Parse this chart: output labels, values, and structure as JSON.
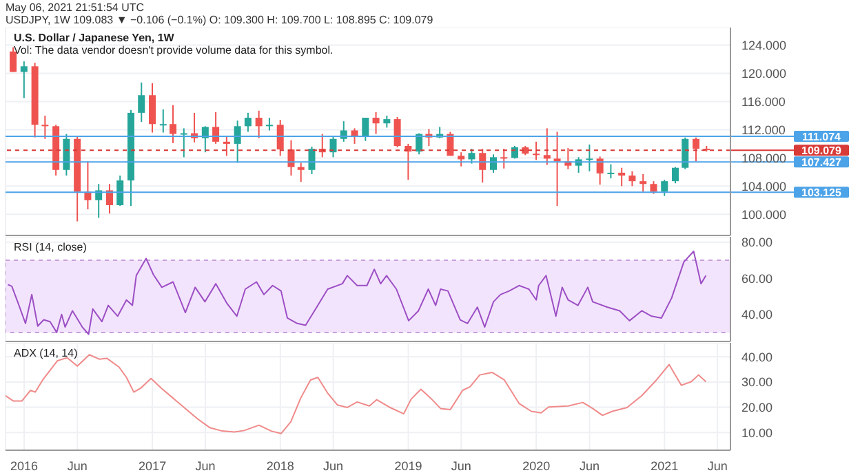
{
  "chart_data": [
    {
      "type": "candlestick",
      "title": "U.S. Dollar / Japanese Yen, 1W",
      "subtitle": "Vol: The data vendor doesn't provide volume data for this symbol.",
      "annotations": [
        "May 06, 2021 21:51:54 UTC",
        "USDJPY, 1W  109.083 ▼ −0.106 (−0.1%)  O: 109.300  H: 109.700  L: 108.895  C: 109.079"
      ],
      "x": [
        "2015-12",
        "2016-01",
        "2016-02",
        "2016-03",
        "2016-04",
        "2016-05",
        "2016-06",
        "2016-07",
        "2016-08",
        "2016-09",
        "2016-10",
        "2016-11",
        "2016-12",
        "2017-01",
        "2017-02",
        "2017-03",
        "2017-04",
        "2017-05",
        "2017-06",
        "2017-07",
        "2017-08",
        "2017-09",
        "2017-10",
        "2017-11",
        "2017-12",
        "2018-01",
        "2018-02",
        "2018-03",
        "2018-04",
        "2018-05",
        "2018-06",
        "2018-07",
        "2018-08",
        "2018-09",
        "2018-10",
        "2018-11",
        "2018-12",
        "2019-01",
        "2019-02",
        "2019-03",
        "2019-04",
        "2019-05",
        "2019-06",
        "2019-07",
        "2019-08",
        "2019-09",
        "2019-10",
        "2019-11",
        "2019-12",
        "2020-01",
        "2020-02",
        "2020-03",
        "2020-04",
        "2020-05",
        "2020-06",
        "2020-07",
        "2020-08",
        "2020-09",
        "2020-10",
        "2020-11",
        "2020-12",
        "2021-01",
        "2021-02",
        "2021-03",
        "2021-04",
        "2021-05"
      ],
      "ohlc": [
        [
          123.1,
          123.7,
          120.2,
          120.2
        ],
        [
          120.2,
          121.7,
          116.5,
          121.0
        ],
        [
          121.0,
          121.5,
          110.9,
          112.7
        ],
        [
          112.7,
          114.0,
          110.7,
          112.5
        ],
        [
          112.5,
          112.7,
          105.5,
          106.3
        ],
        [
          106.3,
          111.4,
          105.5,
          110.7
        ],
        [
          110.7,
          111.0,
          99.0,
          103.2
        ],
        [
          103.2,
          107.5,
          100.7,
          102.0
        ],
        [
          102.0,
          104.3,
          99.5,
          103.4
        ],
        [
          103.4,
          104.3,
          100.1,
          101.3
        ],
        [
          101.3,
          105.5,
          101.2,
          104.8
        ],
        [
          104.8,
          114.8,
          101.2,
          114.4
        ],
        [
          114.4,
          118.7,
          113.1,
          116.9
        ],
        [
          116.9,
          118.6,
          111.6,
          112.8
        ],
        [
          112.8,
          114.9,
          111.6,
          112.8
        ],
        [
          112.8,
          115.5,
          110.1,
          111.4
        ],
        [
          111.4,
          112.2,
          108.1,
          111.5
        ],
        [
          111.5,
          114.4,
          110.2,
          110.8
        ],
        [
          110.8,
          112.5,
          108.8,
          112.4
        ],
        [
          112.4,
          114.5,
          110.0,
          110.3
        ],
        [
          110.3,
          111.1,
          108.3,
          110.0
        ],
        [
          110.0,
          113.3,
          107.3,
          112.5
        ],
        [
          112.5,
          114.4,
          111.7,
          113.7
        ],
        [
          113.7,
          114.7,
          110.8,
          112.5
        ],
        [
          112.5,
          113.7,
          111.9,
          112.7
        ],
        [
          112.7,
          113.4,
          108.3,
          109.2
        ],
        [
          109.2,
          110.5,
          105.5,
          106.7
        ],
        [
          106.7,
          107.3,
          104.6,
          106.3
        ],
        [
          106.3,
          109.6,
          105.7,
          109.3
        ],
        [
          109.3,
          111.4,
          108.1,
          108.8
        ],
        [
          108.8,
          111.0,
          108.1,
          110.7
        ],
        [
          110.7,
          113.2,
          110.3,
          111.9
        ],
        [
          111.9,
          112.2,
          110.0,
          111.0
        ],
        [
          111.0,
          113.7,
          110.4,
          113.7
        ],
        [
          113.7,
          114.5,
          111.4,
          112.9
        ],
        [
          112.9,
          114.0,
          112.3,
          113.5
        ],
        [
          113.5,
          113.8,
          109.5,
          109.7
        ],
        [
          109.7,
          110.0,
          104.9,
          108.9
        ],
        [
          108.9,
          111.5,
          108.5,
          111.4
        ],
        [
          111.4,
          112.1,
          109.7,
          110.9
        ],
        [
          110.9,
          112.4,
          110.8,
          111.4
        ],
        [
          111.4,
          111.7,
          108.3,
          108.3
        ],
        [
          108.3,
          108.8,
          106.8,
          107.8
        ],
        [
          107.8,
          109.3,
          107.2,
          108.7
        ],
        [
          108.7,
          109.3,
          104.5,
          106.3
        ],
        [
          106.3,
          108.5,
          105.9,
          108.1
        ],
        [
          108.1,
          109.3,
          106.5,
          108.0
        ],
        [
          108.0,
          109.7,
          107.9,
          109.5
        ],
        [
          109.5,
          109.7,
          108.4,
          108.6
        ],
        [
          108.6,
          110.3,
          107.7,
          108.4
        ],
        [
          108.4,
          112.2,
          107.0,
          107.9
        ],
        [
          107.9,
          111.7,
          101.2,
          107.5
        ],
        [
          107.5,
          109.4,
          106.4,
          106.9
        ],
        [
          106.9,
          108.1,
          105.9,
          107.8
        ],
        [
          107.8,
          109.9,
          106.1,
          107.9
        ],
        [
          107.9,
          108.2,
          104.2,
          105.8
        ],
        [
          105.8,
          107.1,
          105.1,
          105.9
        ],
        [
          105.9,
          106.6,
          104.0,
          105.5
        ],
        [
          105.5,
          106.1,
          104.0,
          104.7
        ],
        [
          104.7,
          105.7,
          103.2,
          104.3
        ],
        [
          104.3,
          104.7,
          102.9,
          103.2
        ],
        [
          103.2,
          104.9,
          102.6,
          104.7
        ],
        [
          104.7,
          106.7,
          104.4,
          106.6
        ],
        [
          106.6,
          110.9,
          106.4,
          110.7
        ],
        [
          110.7,
          110.9,
          107.5,
          109.3
        ],
        [
          109.3,
          109.7,
          108.9,
          109.1
        ]
      ],
      "xlim": [
        "2015-11-09",
        "2021-07-08"
      ],
      "xticks": [
        {
          "value": "2016-01-01",
          "label": null
        },
        {
          "value": "2016-06-01",
          "label": null
        },
        {
          "value": "2017-01-01",
          "label": null
        },
        {
          "value": "2017-06-01",
          "label": null
        },
        {
          "value": "2018-01-01",
          "label": null
        },
        {
          "value": "2018-06-01",
          "label": null
        },
        {
          "value": "2019-01-01",
          "label": null
        },
        {
          "value": "2019-06-01",
          "label": null
        },
        {
          "value": "2020-01-01",
          "label": null
        },
        {
          "value": "2020-06-01",
          "label": null
        },
        {
          "value": "2021-01-01",
          "label": null
        },
        {
          "value": "2021-06-01",
          "label": null
        }
      ],
      "ylim": [
        97,
        126.5
      ],
      "yticks": [
        {
          "value": 100,
          "label": "100.000"
        },
        {
          "value": 104,
          "label": "104.000"
        },
        {
          "value": 108,
          "label": "108.000"
        },
        {
          "value": 112,
          "label": "112.000"
        },
        {
          "value": 116,
          "label": "116.000"
        },
        {
          "value": 120,
          "label": "120.000"
        },
        {
          "value": 124,
          "label": "124.000"
        }
      ],
      "ref_lines": [
        {
          "axis": "y",
          "value": 111.074,
          "label": "111.074",
          "color": "#4da3e8"
        },
        {
          "axis": "y",
          "value": 109.079,
          "label": "109.079",
          "color": "#d83a37",
          "line_style": "dashed"
        },
        {
          "axis": "y",
          "value": 107.427,
          "label": "107.427",
          "color": "#4da3e8"
        },
        {
          "axis": "y",
          "value": 103.125,
          "label": "103.125",
          "color": "#4da3e8"
        }
      ],
      "grid": true,
      "tick_labels": "y"
    },
    {
      "type": "line",
      "title": "RSI (14, close)",
      "series": [
        {
          "color": "#9c4fc4",
          "x": [
            "2015-11-16",
            "2015-11-27",
            "2015-12-14",
            "2016-01-05",
            "2016-01-23",
            "2016-02-09",
            "2016-02-26",
            "2016-03-15",
            "2016-04-03",
            "2016-04-17",
            "2016-04-27",
            "2016-05-18",
            "2016-06-15",
            "2016-07-03",
            "2016-07-15",
            "2016-08-10",
            "2016-08-28",
            "2016-09-24",
            "2016-10-19",
            "2016-11-05",
            "2016-11-16",
            "2016-12-14",
            "2017-01-04",
            "2017-01-28",
            "2017-03-01",
            "2017-04-05",
            "2017-05-03",
            "2017-05-31",
            "2017-07-01",
            "2017-08-02",
            "2017-08-30",
            "2017-09-23",
            "2017-10-25",
            "2017-11-15",
            "2017-12-10",
            "2018-01-03",
            "2018-01-21",
            "2018-02-18",
            "2018-03-14",
            "2018-04-18",
            "2018-05-16",
            "2018-06-27",
            "2018-07-11",
            "2018-08-08",
            "2018-09-05",
            "2018-09-26",
            "2018-10-14",
            "2018-10-31",
            "2018-11-28",
            "2019-01-02",
            "2019-01-30",
            "2019-02-27",
            "2019-03-20",
            "2019-04-03",
            "2019-04-24",
            "2019-05-29",
            "2019-06-19",
            "2019-07-17",
            "2019-08-07",
            "2019-09-01",
            "2019-09-21",
            "2019-10-16",
            "2019-11-13",
            "2019-12-11",
            "2020-01-01",
            "2020-01-08",
            "2020-01-29",
            "2020-02-26",
            "2020-03-15",
            "2020-04-01",
            "2020-04-29",
            "2020-05-27",
            "2020-06-10",
            "2020-07-22",
            "2020-08-26",
            "2020-09-23",
            "2020-10-28",
            "2020-11-25",
            "2020-12-23",
            "2021-01-21",
            "2021-02-25",
            "2021-03-25",
            "2021-04-15",
            "2021-04-29"
          ],
          "values": [
            56.5,
            55.6,
            46.8,
            35,
            51,
            33.5,
            37,
            36,
            30,
            40,
            33,
            42,
            33,
            29,
            43,
            36,
            45,
            39,
            48,
            45,
            61.5,
            71,
            62,
            55,
            58,
            41,
            55,
            47,
            57,
            46,
            39,
            54,
            58,
            51,
            56,
            53,
            38,
            35,
            34,
            45,
            54,
            57,
            61.5,
            56,
            56,
            65,
            57,
            61.5,
            54,
            36.5,
            42,
            54,
            45,
            54,
            53,
            37,
            35,
            44,
            33,
            47,
            51,
            53,
            56,
            54,
            48,
            56,
            61.5,
            39,
            55,
            48,
            45,
            55,
            47,
            44,
            42,
            36.5,
            42,
            39,
            38,
            49,
            69,
            75,
            57,
            61.5
          ]
        }
      ],
      "xlim": [
        "2015-11-09",
        "2021-07-08"
      ],
      "xticks": [
        {
          "value": "2016-01-01",
          "label": null
        },
        {
          "value": "2016-06-01",
          "label": null
        },
        {
          "value": "2017-01-01",
          "label": null
        },
        {
          "value": "2017-06-01",
          "label": null
        },
        {
          "value": "2018-01-01",
          "label": null
        },
        {
          "value": "2018-06-01",
          "label": null
        },
        {
          "value": "2019-01-01",
          "label": null
        },
        {
          "value": "2019-06-01",
          "label": null
        },
        {
          "value": "2020-01-01",
          "label": null
        },
        {
          "value": "2020-06-01",
          "label": null
        },
        {
          "value": "2021-01-01",
          "label": null
        },
        {
          "value": "2021-06-01",
          "label": null
        }
      ],
      "ylim": [
        25,
        83
      ],
      "yticks": [
        {
          "value": 40,
          "label": "40.00"
        },
        {
          "value": 60,
          "label": "60.00"
        },
        {
          "value": 80,
          "label": "80.00"
        }
      ],
      "bands": [
        {
          "axis": "y",
          "from": 30,
          "to": 70,
          "color": "#f3e4fd"
        }
      ],
      "grid": true,
      "tick_labels": "y"
    },
    {
      "type": "line",
      "title": "ADX (14, 14)",
      "series": [
        {
          "color": "#f08a8a",
          "x": [
            "2015-11-09",
            "2015-12-01",
            "2015-12-26",
            "2016-01-19",
            "2016-02-02",
            "2016-02-23",
            "2016-04-05",
            "2016-05-03",
            "2016-06-01",
            "2016-07-05",
            "2016-08-03",
            "2016-08-24",
            "2016-09-28",
            "2016-10-19",
            "2016-11-09",
            "2016-11-30",
            "2016-12-28",
            "2017-01-25",
            "2017-03-01",
            "2017-04-05",
            "2017-05-10",
            "2017-06-14",
            "2017-07-19",
            "2017-08-23",
            "2017-09-20",
            "2017-11-01",
            "2017-12-06",
            "2018-01-03",
            "2018-01-31",
            "2018-02-28",
            "2018-03-28",
            "2018-04-18",
            "2018-05-16",
            "2018-06-13",
            "2018-07-11",
            "2018-08-08",
            "2018-09-12",
            "2018-10-03",
            "2018-11-07",
            "2018-12-19",
            "2019-01-09",
            "2019-02-06",
            "2019-03-06",
            "2019-04-03",
            "2019-05-01",
            "2019-06-05",
            "2019-06-26",
            "2019-07-24",
            "2019-08-28",
            "2019-10-02",
            "2019-11-13",
            "2019-12-18",
            "2020-01-15",
            "2020-02-05",
            "2020-04-01",
            "2020-05-13",
            "2020-06-10",
            "2020-07-08",
            "2020-08-05",
            "2020-09-16",
            "2020-10-28",
            "2020-12-09",
            "2021-01-14",
            "2021-02-18",
            "2021-03-18",
            "2021-04-08",
            "2021-04-29"
          ],
          "values": [
            24.6,
            22.5,
            22.5,
            26.7,
            26,
            30.8,
            38.4,
            39.6,
            36.3,
            40.8,
            39,
            39.4,
            35.9,
            31.8,
            26,
            27.7,
            31.4,
            27.7,
            23.6,
            19.5,
            15.4,
            11.9,
            10.6,
            10.2,
            10.8,
            12.9,
            10.6,
            9.6,
            14.3,
            23.6,
            30.8,
            31.8,
            25.6,
            20.9,
            19.9,
            22.1,
            20.5,
            23,
            20.1,
            17.4,
            23.2,
            27.1,
            23.6,
            19.5,
            19.1,
            26.7,
            28.1,
            32.8,
            33.8,
            30.8,
            21.5,
            18.4,
            17.8,
            20.1,
            20.5,
            21.9,
            19.5,
            16.8,
            18.4,
            19.9,
            24.6,
            30.8,
            36.9,
            28.7,
            30.1,
            32.8,
            30.1
          ]
        }
      ],
      "xlim": [
        "2015-11-09",
        "2021-07-08"
      ],
      "xticks": [
        {
          "value": "2016-01-01",
          "label": "2016"
        },
        {
          "value": "2016-06-01",
          "label": "Jun"
        },
        {
          "value": "2017-01-01",
          "label": "2017"
        },
        {
          "value": "2017-06-01",
          "label": "Jun"
        },
        {
          "value": "2018-01-01",
          "label": "2018"
        },
        {
          "value": "2018-06-01",
          "label": "Jun"
        },
        {
          "value": "2019-01-01",
          "label": "2019"
        },
        {
          "value": "2019-06-01",
          "label": "Jun"
        },
        {
          "value": "2020-01-01",
          "label": "2020"
        },
        {
          "value": "2020-06-01",
          "label": "Jun"
        },
        {
          "value": "2021-01-01",
          "label": "2021"
        },
        {
          "value": "2021-06-01",
          "label": "Jun"
        }
      ],
      "ylim": [
        3,
        45.5
      ],
      "yticks": [
        {
          "value": 10,
          "label": "10.00"
        },
        {
          "value": 20,
          "label": "20.00"
        },
        {
          "value": 30,
          "label": "30.00"
        },
        {
          "value": 40,
          "label": "40.00"
        }
      ],
      "grid": true
    }
  ]
}
